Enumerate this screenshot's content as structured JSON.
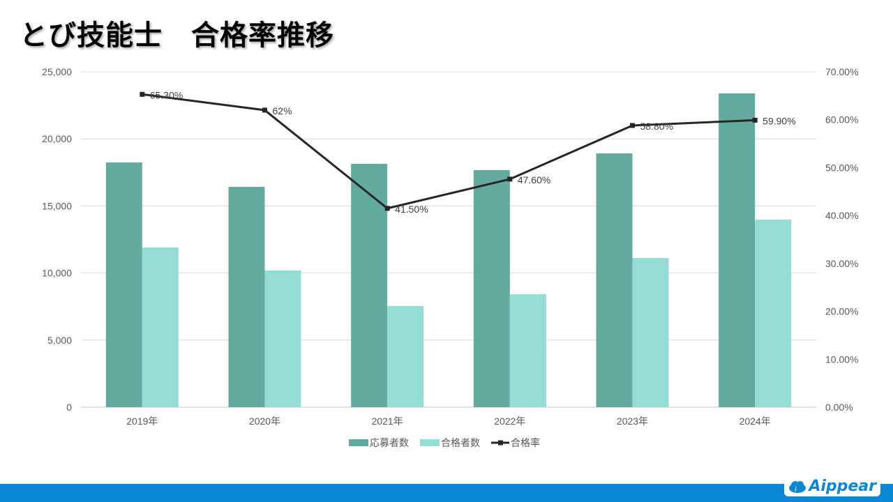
{
  "title": "とび技能士　合格率推移",
  "logo_text": "Aippear",
  "chart_data": {
    "type": "bar+line",
    "title": "とび技能士　合格率推移",
    "categories": [
      "2019年",
      "2020年",
      "2021年",
      "2022年",
      "2023年",
      "2024年"
    ],
    "series": [
      {
        "name": "応募者数",
        "type": "bar",
        "axis": "left",
        "color": "#63ab9f",
        "values": [
          18240,
          16420,
          18140,
          17670,
          18920,
          23390
        ]
      },
      {
        "name": "合格者数",
        "type": "bar",
        "axis": "left",
        "color": "#94ddd4",
        "values": [
          11900,
          10190,
          7540,
          8420,
          11120,
          13980
        ]
      },
      {
        "name": "合格率",
        "type": "line",
        "axis": "right",
        "color": "#262626",
        "values": [
          65.3,
          62.0,
          41.5,
          47.6,
          58.8,
          59.9
        ],
        "labels": [
          "65.30%",
          "62%",
          "41.50%",
          "47.60%",
          "58.80%",
          "59.90%"
        ]
      }
    ],
    "y_left": {
      "range": [
        0,
        25000
      ],
      "ticks": [
        "0",
        "5,000",
        "10,000",
        "15,000",
        "20,000",
        "25,000"
      ]
    },
    "y_right": {
      "range": [
        0,
        70
      ],
      "ticks": [
        "0.00%",
        "10.00%",
        "20.00%",
        "30.00%",
        "40.00%",
        "50.00%",
        "60.00%",
        "70.00%"
      ]
    },
    "grid": true,
    "legend": "bottom"
  }
}
